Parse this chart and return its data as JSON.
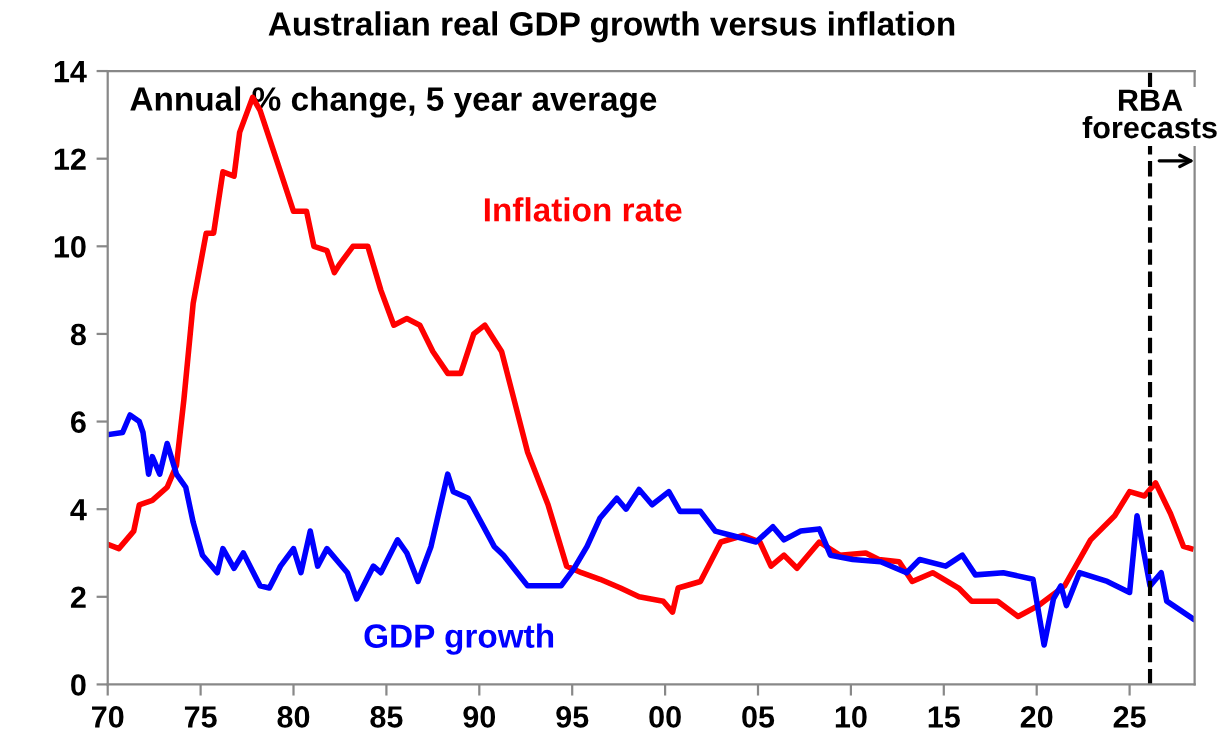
{
  "chart_data": {
    "type": "line",
    "title": "Australian real GDP growth versus inflation",
    "annotations": [
      "Annual % change, 5 year average"
    ],
    "xlim": [
      1970,
      2028.5
    ],
    "xticks": [
      {
        "value": 1970,
        "label": "70"
      },
      {
        "value": 1975,
        "label": "75"
      },
      {
        "value": 1980,
        "label": "80"
      },
      {
        "value": 1985,
        "label": "85"
      },
      {
        "value": 1990,
        "label": "90"
      },
      {
        "value": 1995,
        "label": "95"
      },
      {
        "value": 2000,
        "label": "00"
      },
      {
        "value": 2005,
        "label": "05"
      },
      {
        "value": 2010,
        "label": "10"
      },
      {
        "value": 2015,
        "label": "15"
      },
      {
        "value": 2020,
        "label": "20"
      },
      {
        "value": 2025,
        "label": "25"
      }
    ],
    "ylim": [
      0,
      14
    ],
    "yticks": [
      0,
      2,
      4,
      6,
      8,
      10,
      12,
      14
    ],
    "grid": false,
    "legend": false,
    "marker": "none",
    "line_style": "solid",
    "ref_lines": [
      {
        "axis": "x",
        "value": 2026.1,
        "label": "RBA\nforecasts",
        "color": "#000000",
        "line_style": "dashed"
      }
    ],
    "series": [
      {
        "name": "Inflation rate",
        "color": "#ff0000",
        "x": [
          1970,
          1970.6,
          1971,
          1971.4,
          1971.7,
          1972.4,
          1973.2,
          1973.7,
          1974.1,
          1974.6,
          1975.3,
          1975.7,
          1976.2,
          1976.8,
          1977.1,
          1977.8,
          1978.2,
          1979.3,
          1980,
          1980.7,
          1981.1,
          1981.8,
          1982.2,
          1982.5,
          1983.2,
          1984,
          1984.7,
          1985.4,
          1986.1,
          1986.8,
          1987.5,
          1988.3,
          1989,
          1989.7,
          1990.3,
          1991.2,
          1992.6,
          1993.7,
          1994.7,
          1995.5,
          1996.5,
          1997.6,
          1998.6,
          1999.9,
          2000.4,
          2000.7,
          2001.9,
          2003,
          2004.2,
          2005.1,
          2005.7,
          2006.4,
          2007.1,
          2008.3,
          2009.4,
          2010.8,
          2011.5,
          2012.6,
          2013.3,
          2014.4,
          2015.8,
          2016.5,
          2017.9,
          2019,
          2020.1,
          2021.5,
          2022.9,
          2024.2,
          2025,
          2025.8,
          2026.4,
          2027.2,
          2027.9,
          2028.3
        ],
        "values": [
          3.2,
          3.1,
          3.3,
          3.5,
          4.1,
          4.2,
          4.5,
          5.0,
          6.5,
          8.7,
          10.3,
          10.3,
          11.7,
          11.6,
          12.6,
          13.4,
          13.1,
          11.7,
          10.8,
          10.8,
          10.0,
          9.9,
          9.4,
          9.6,
          10.0,
          10.0,
          9.0,
          8.2,
          8.35,
          8.2,
          7.6,
          7.1,
          7.1,
          8.0,
          8.2,
          7.6,
          5.3,
          4.1,
          2.7,
          2.55,
          2.4,
          2.2,
          2.0,
          1.9,
          1.65,
          2.2,
          2.35,
          3.25,
          3.4,
          3.25,
          2.7,
          2.95,
          2.65,
          3.25,
          2.95,
          3.0,
          2.85,
          2.8,
          2.35,
          2.55,
          2.2,
          1.9,
          1.9,
          1.55,
          1.8,
          2.25,
          3.3,
          3.85,
          4.4,
          4.3,
          4.6,
          3.9,
          3.15,
          3.1
        ]
      },
      {
        "name": "GDP growth",
        "color": "#0000ff",
        "x": [
          1970,
          1970.8,
          1971.2,
          1971.7,
          1971.9,
          1972.2,
          1972.4,
          1972.8,
          1973.2,
          1973.7,
          1974.2,
          1974.6,
          1975.1,
          1975.9,
          1976.2,
          1976.8,
          1977.3,
          1978.2,
          1978.7,
          1979.3,
          1980,
          1980.4,
          1980.9,
          1981.3,
          1981.8,
          1982.9,
          1983.4,
          1984.3,
          1984.7,
          1985.6,
          1986.1,
          1986.7,
          1987.4,
          1988.3,
          1988.6,
          1989.4,
          1990.8,
          1991.3,
          1992.6,
          1993.7,
          1994.4,
          1995.1,
          1995.8,
          1996.5,
          1997.4,
          1997.9,
          1998.6,
          1999.3,
          2000.2,
          2000.8,
          2001.9,
          2002.7,
          2003.6,
          2004.9,
          2005.8,
          2006.4,
          2007.3,
          2008.3,
          2008.9,
          2010.1,
          2011.6,
          2013,
          2013.7,
          2015.1,
          2016,
          2016.7,
          2018.2,
          2019.8,
          2020.4,
          2020.9,
          2021.3,
          2021.6,
          2022.3,
          2023.8,
          2025,
          2025.4,
          2026.1,
          2026.7,
          2027,
          2028.4
        ],
        "values": [
          5.7,
          5.75,
          6.15,
          6.0,
          5.75,
          4.8,
          5.2,
          4.8,
          5.5,
          4.8,
          4.5,
          3.7,
          2.95,
          2.55,
          3.1,
          2.65,
          3.0,
          2.25,
          2.2,
          2.7,
          3.1,
          2.55,
          3.5,
          2.7,
          3.1,
          2.55,
          1.95,
          2.7,
          2.55,
          3.3,
          3.0,
          2.35,
          3.15,
          4.8,
          4.4,
          4.25,
          3.15,
          2.95,
          2.25,
          2.25,
          2.25,
          2.65,
          3.15,
          3.8,
          4.25,
          4.0,
          4.45,
          4.1,
          4.4,
          3.95,
          3.95,
          3.5,
          3.4,
          3.25,
          3.6,
          3.3,
          3.5,
          3.55,
          2.95,
          2.85,
          2.8,
          2.55,
          2.85,
          2.7,
          2.95,
          2.5,
          2.55,
          2.4,
          0.9,
          1.95,
          2.25,
          1.8,
          2.55,
          2.35,
          2.1,
          3.85,
          2.25,
          2.55,
          1.9,
          1.5
        ]
      }
    ]
  }
}
